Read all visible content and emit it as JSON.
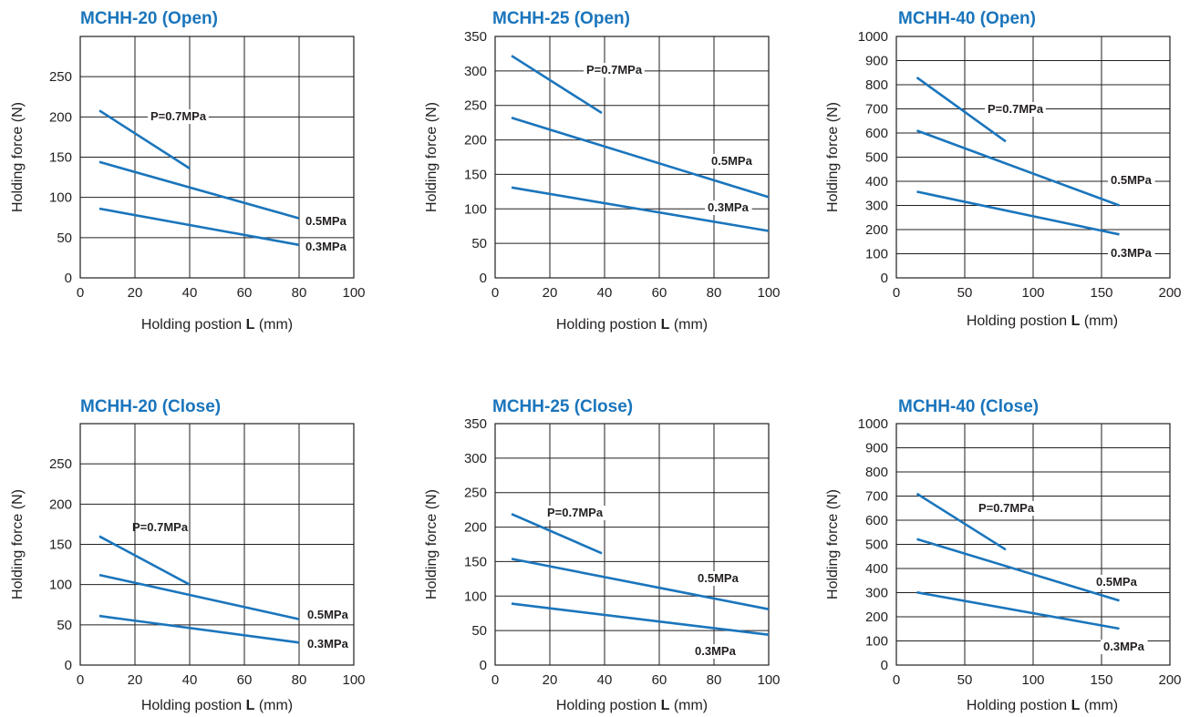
{
  "colors": {
    "title": "#1a75bc",
    "line": "#1a75bc",
    "grid": "#231f20",
    "text": "#231f20"
  },
  "chart_data": [
    {
      "type": "line",
      "title": "MCHH-20 (Open)",
      "xlabel": "Holding postion",
      "xlabel_bold": "L",
      "xlabel_unit": "(mm)",
      "ylabel": "Holding force (N)",
      "xlim": [
        0,
        100
      ],
      "ylim": [
        0,
        300
      ],
      "xticks": [
        0,
        20,
        40,
        60,
        80,
        100
      ],
      "yticks": [
        0,
        50,
        100,
        150,
        200,
        250
      ],
      "grid": true,
      "series": [
        {
          "name": "P=0.7MPa",
          "x": [
            7,
            40
          ],
          "y": [
            208,
            136
          ]
        },
        {
          "name": "0.5MPa",
          "x": [
            7,
            80
          ],
          "y": [
            144,
            74
          ]
        },
        {
          "name": "0.3MPa",
          "x": [
            7,
            80
          ],
          "y": [
            86,
            41
          ]
        }
      ]
    },
    {
      "type": "line",
      "title": "MCHH-25 (Open)",
      "xlabel": "Holding postion",
      "xlabel_bold": "L",
      "xlabel_unit": "(mm)",
      "ylabel": "Holding force (N)",
      "xlim": [
        0,
        100
      ],
      "ylim": [
        0,
        350
      ],
      "xticks": [
        0,
        20,
        40,
        60,
        80,
        100
      ],
      "yticks": [
        0,
        50,
        100,
        150,
        200,
        250,
        300,
        350
      ],
      "grid": true,
      "series": [
        {
          "name": "P=0.7MPa",
          "x": [
            6,
            39
          ],
          "y": [
            322,
            239
          ]
        },
        {
          "name": "0.5MPa",
          "x": [
            6,
            100
          ],
          "y": [
            232,
            117
          ]
        },
        {
          "name": "0.3MPa",
          "x": [
            6,
            100
          ],
          "y": [
            131,
            68
          ]
        }
      ]
    },
    {
      "type": "line",
      "title": "MCHH-40 (Open)",
      "xlabel": "Holding postion",
      "xlabel_bold": "L",
      "xlabel_unit": "(mm)",
      "ylabel": "Holding force (N)",
      "xlim": [
        0,
        200
      ],
      "ylim": [
        0,
        1000
      ],
      "xticks": [
        0,
        50,
        100,
        150,
        200
      ],
      "yticks": [
        0,
        100,
        200,
        300,
        400,
        500,
        600,
        700,
        800,
        900,
        1000
      ],
      "grid": true,
      "series": [
        {
          "name": "P=0.7MPa",
          "x": [
            15,
            80
          ],
          "y": [
            830,
            565
          ]
        },
        {
          "name": "0.5MPa",
          "x": [
            15,
            163
          ],
          "y": [
            610,
            300
          ]
        },
        {
          "name": "0.3MPa",
          "x": [
            15,
            163
          ],
          "y": [
            357,
            180
          ]
        }
      ]
    },
    {
      "type": "line",
      "title": "MCHH-20 (Close)",
      "xlabel": "Holding postion",
      "xlabel_bold": "L",
      "xlabel_unit": "(mm)",
      "ylabel": "Holding force (N)",
      "xlim": [
        0,
        100
      ],
      "ylim": [
        0,
        300
      ],
      "xticks": [
        0,
        20,
        40,
        60,
        80,
        100
      ],
      "yticks": [
        0,
        50,
        100,
        150,
        200,
        250
      ],
      "grid": true,
      "series": [
        {
          "name": "P=0.7MPa",
          "x": [
            7,
            40
          ],
          "y": [
            160,
            100
          ]
        },
        {
          "name": "0.5MPa",
          "x": [
            7,
            80
          ],
          "y": [
            112,
            57
          ]
        },
        {
          "name": "0.3MPa",
          "x": [
            7,
            80
          ],
          "y": [
            61,
            28
          ]
        }
      ]
    },
    {
      "type": "line",
      "title": "MCHH-25 (Close)",
      "xlabel": "Holding postion",
      "xlabel_bold": "L",
      "xlabel_unit": "(mm)",
      "ylabel": "Holding force (N)",
      "xlim": [
        0,
        100
      ],
      "ylim": [
        0,
        350
      ],
      "xticks": [
        0,
        20,
        40,
        60,
        80,
        100
      ],
      "yticks": [
        0,
        50,
        100,
        150,
        200,
        250,
        300,
        350
      ],
      "grid": true,
      "series": [
        {
          "name": "P=0.7MPa",
          "x": [
            6,
            39
          ],
          "y": [
            219,
            162
          ]
        },
        {
          "name": "0.5MPa",
          "x": [
            6,
            100
          ],
          "y": [
            154,
            81
          ]
        },
        {
          "name": "0.3MPa",
          "x": [
            6,
            100
          ],
          "y": [
            89,
            44
          ]
        }
      ]
    },
    {
      "type": "line",
      "title": "MCHH-40 (Close)",
      "xlabel": "Holding postion",
      "xlabel_bold": "L",
      "xlabel_unit": "(mm)",
      "ylabel": "Holding force (N)",
      "xlim": [
        0,
        200
      ],
      "ylim": [
        0,
        1000
      ],
      "xticks": [
        0,
        50,
        100,
        150,
        200
      ],
      "yticks": [
        0,
        100,
        200,
        300,
        400,
        500,
        600,
        700,
        800,
        900,
        1000
      ],
      "grid": true,
      "series": [
        {
          "name": "P=0.7MPa",
          "x": [
            15,
            80
          ],
          "y": [
            710,
            478
          ]
        },
        {
          "name": "0.5MPa",
          "x": [
            15,
            163
          ],
          "y": [
            522,
            267
          ]
        },
        {
          "name": "0.3MPa",
          "x": [
            15,
            163
          ],
          "y": [
            301,
            151
          ]
        }
      ]
    }
  ]
}
